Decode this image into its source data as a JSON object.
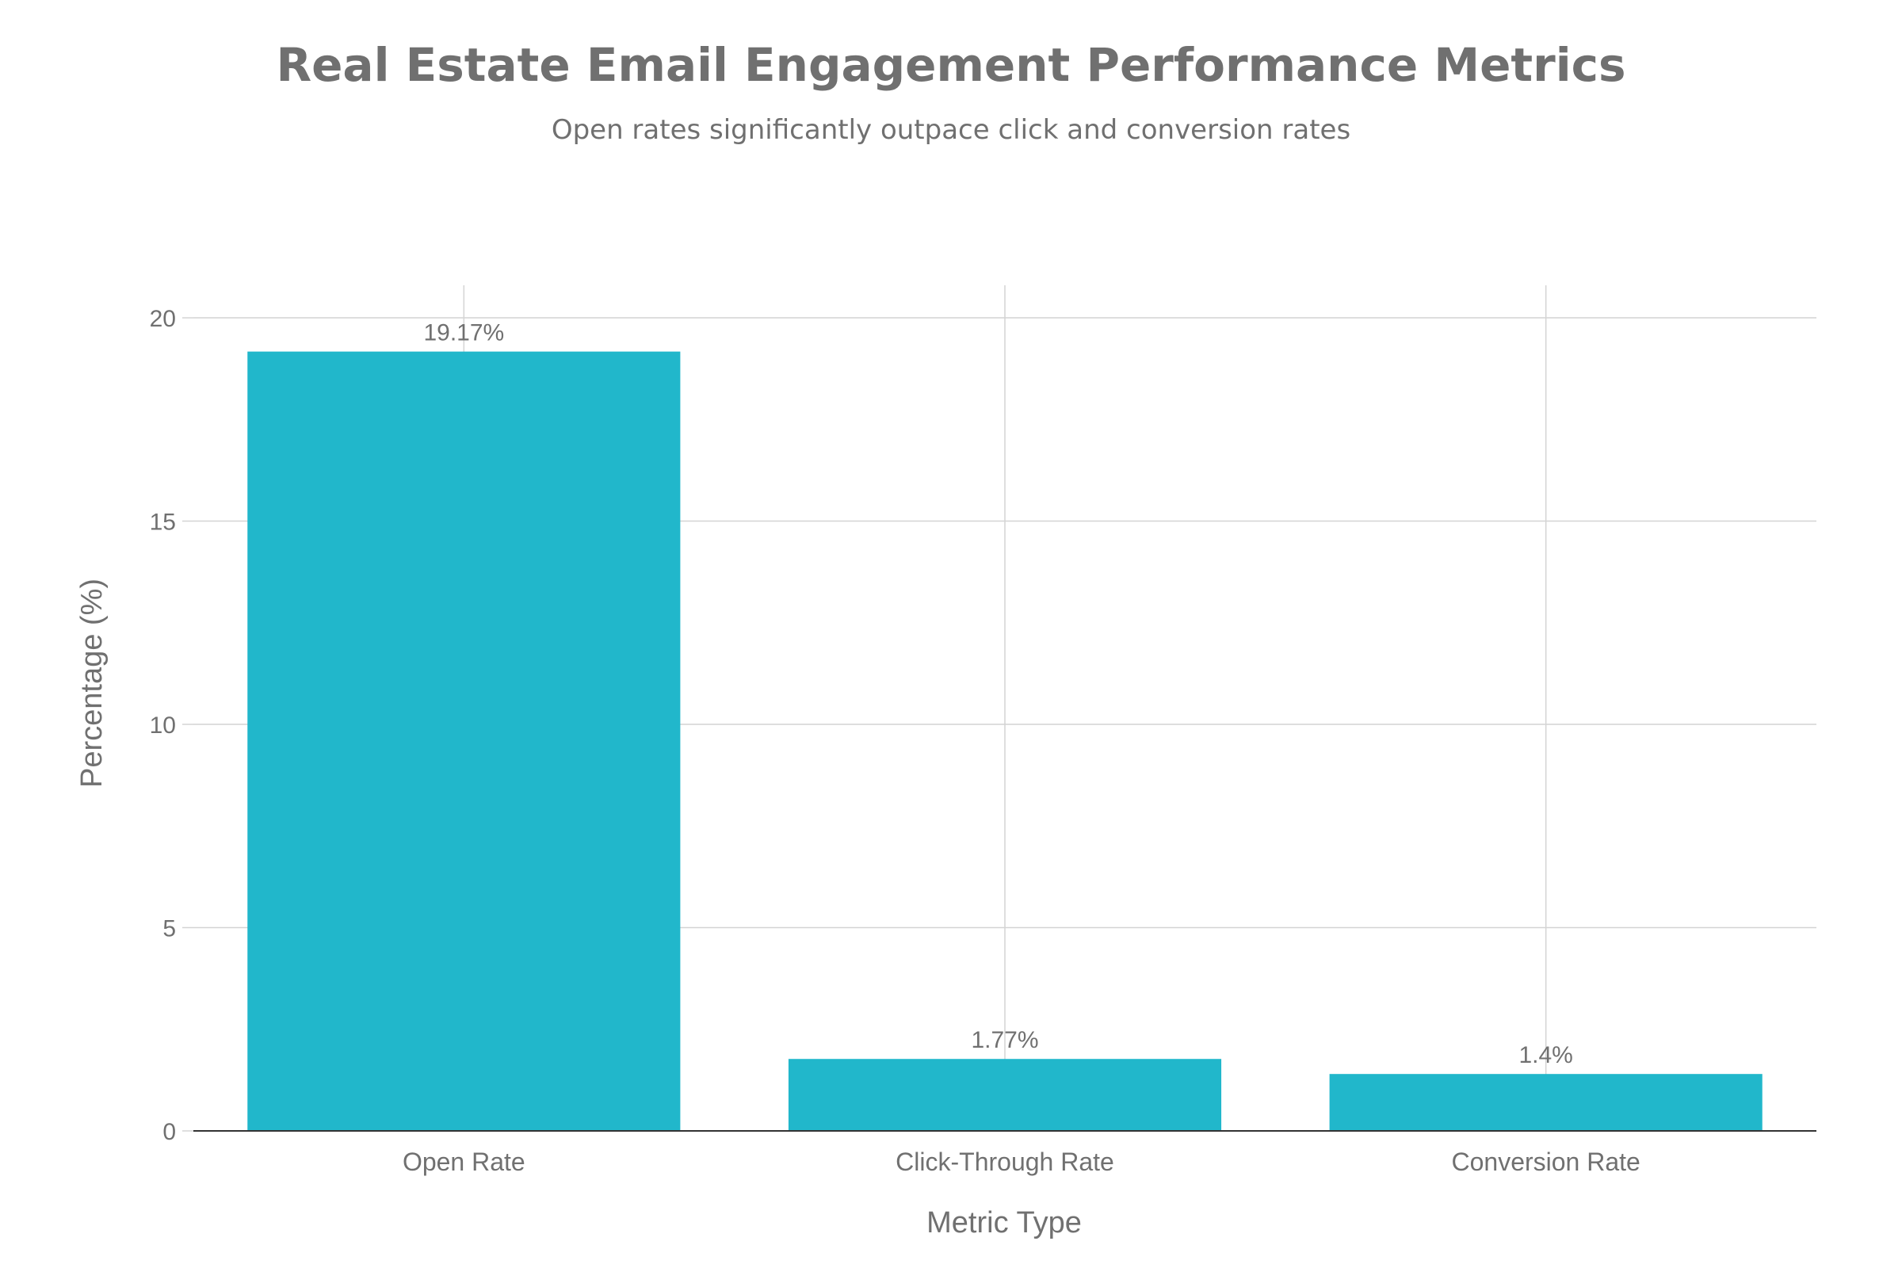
{
  "chart_data": {
    "type": "bar",
    "title": "Real Estate Email Engagement Performance Metrics",
    "subtitle": "Open rates significantly outpace click and conversion rates",
    "xlabel": "Metric Type",
    "ylabel": "Percentage (%)",
    "categories": [
      "Open Rate",
      "Click-Through Rate",
      "Conversion Rate"
    ],
    "values": [
      19.17,
      1.77,
      1.4
    ],
    "data_labels": [
      "19.17%",
      "1.77%",
      "1.4%"
    ],
    "ylim": [
      0,
      20.8
    ],
    "yticks": [
      0,
      5,
      10,
      15,
      20
    ],
    "ytick_labels": [
      "0",
      "5",
      "10",
      "15",
      "20"
    ],
    "grid": true,
    "legend": "none",
    "colors": {
      "bar": "#21b7cb",
      "grid": "#d4d4d4",
      "text": "#707070",
      "axis": "#333333"
    }
  }
}
